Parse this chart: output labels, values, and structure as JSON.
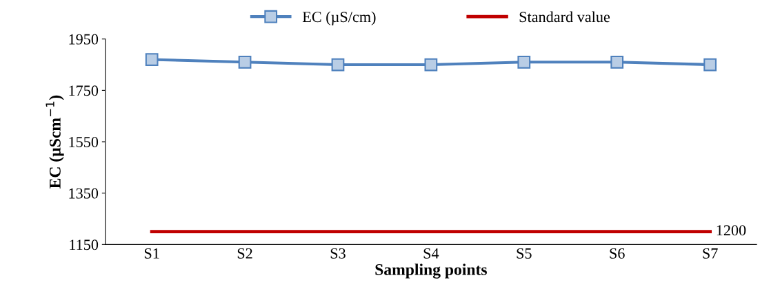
{
  "chart_data": {
    "type": "line",
    "xlabel": "Sampling points",
    "ylabel": "EC (µScm$^{−1}$)",
    "categories": [
      "S1",
      "S2",
      "S3",
      "S4",
      "S5",
      "S6",
      "S7"
    ],
    "series": [
      {
        "name": "EC (µS/cm)",
        "color": "#4f81bd",
        "marker": "square",
        "values": [
          1870,
          1860,
          1850,
          1850,
          1860,
          1860,
          1850
        ]
      },
      {
        "name": "Standard value",
        "color": "#c00000",
        "marker": "none",
        "values": [
          1200,
          1200,
          1200,
          1200,
          1200,
          1200,
          1200
        ],
        "value_labels": [
          null,
          null,
          null,
          null,
          null,
          null,
          "1200"
        ]
      }
    ],
    "ylim": [
      1150,
      1950
    ],
    "yticks": [
      1150,
      1350,
      1550,
      1750,
      1950
    ],
    "grid": false,
    "legend": "top"
  }
}
